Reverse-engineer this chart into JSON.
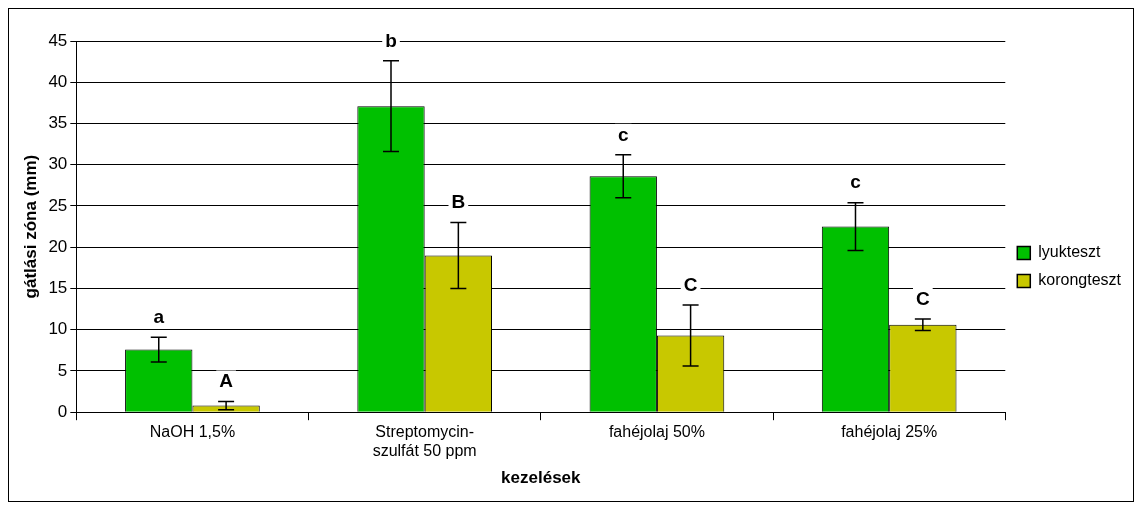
{
  "chart_data": {
    "type": "bar",
    "xlabel": "kezelések",
    "ylabel": "gátlási zóna (mm)",
    "categories": [
      "NaOH 1,5%",
      "Streptomycin-szulfát 50 ppm",
      "fahéjolaj 50%",
      "fahéjolaj 25%"
    ],
    "series": [
      {
        "name": "lyukteszt",
        "color": "#00c000",
        "values": [
          7.6,
          37.1,
          28.6,
          22.5
        ],
        "errors": [
          1.5,
          5.5,
          2.6,
          2.9
        ],
        "value_labels": [
          "a",
          "b",
          "c",
          "c"
        ]
      },
      {
        "name": "korongteszt",
        "color": "#c8c800",
        "values": [
          0.8,
          19,
          9.3,
          10.6
        ],
        "errors": [
          0.5,
          4,
          3.7,
          0.7
        ],
        "value_labels": [
          "A",
          "B",
          "C",
          "C"
        ]
      }
    ],
    "ylim": [
      0,
      45
    ],
    "yticks": [
      0,
      5,
      10,
      15,
      20,
      25,
      30,
      35,
      40,
      45
    ],
    "grid": "y",
    "legend": "right"
  }
}
